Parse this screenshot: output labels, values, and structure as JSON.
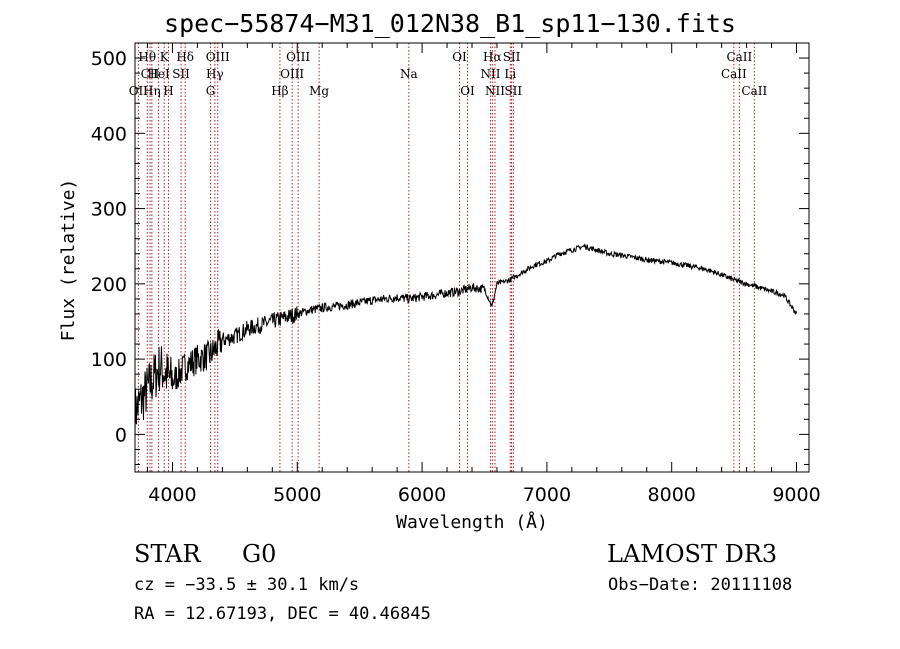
{
  "chart_data": {
    "type": "line",
    "title": "spec−55874−M31_012N38_B1_sp11−130.fits",
    "xlabel": "Wavelength (Å)",
    "ylabel": "Flux (relative)",
    "xlim": [
      3700,
      9100
    ],
    "ylim": [
      -50,
      520
    ],
    "x_ticks": [
      4000,
      5000,
      6000,
      7000,
      8000,
      9000
    ],
    "y_ticks": [
      0,
      100,
      200,
      300,
      400,
      500
    ],
    "series": [
      {
        "name": "spectrum",
        "x": [
          3700,
          3800,
          3900,
          4000,
          4100,
          4200,
          4300,
          4400,
          4500,
          4600,
          4700,
          4800,
          4900,
          5000,
          5100,
          5200,
          5300,
          5400,
          5500,
          5600,
          5700,
          5800,
          5900,
          6000,
          6100,
          6200,
          6300,
          6400,
          6500,
          6560,
          6600,
          6700,
          6800,
          6900,
          7000,
          7100,
          7200,
          7300,
          7400,
          7500,
          7600,
          7700,
          7800,
          7900,
          8000,
          8100,
          8200,
          8300,
          8400,
          8500,
          8600,
          8700,
          8800,
          8900,
          9000
        ],
        "y": [
          30,
          60,
          90,
          70,
          90,
          100,
          105,
          125,
          130,
          140,
          145,
          150,
          155,
          160,
          165,
          168,
          170,
          172,
          175,
          178,
          180,
          182,
          180,
          183,
          185,
          188,
          190,
          195,
          193,
          170,
          200,
          205,
          215,
          225,
          230,
          240,
          245,
          250,
          245,
          240,
          238,
          235,
          232,
          230,
          228,
          225,
          222,
          218,
          212,
          205,
          200,
          195,
          190,
          185,
          160
        ]
      }
    ],
    "line_markers": [
      {
        "label": "Hθ",
        "x": 3798,
        "row": 0
      },
      {
        "label": "CII",
        "x": 3820,
        "row": 1
      },
      {
        "label": "OII",
        "x": 3727,
        "row": 2
      },
      {
        "label": "Hη",
        "x": 3835,
        "row": 2
      },
      {
        "label": "K",
        "x": 3934,
        "row": 0
      },
      {
        "label": "HeI",
        "x": 3889,
        "row": 1
      },
      {
        "label": "SII",
        "x": 4069,
        "row": 1
      },
      {
        "label": "H",
        "x": 3968,
        "row": 2
      },
      {
        "label": "Hδ",
        "x": 4102,
        "row": 0
      },
      {
        "label": "OIII",
        "x": 4363,
        "row": 0
      },
      {
        "label": "Hγ",
        "x": 4340,
        "row": 1
      },
      {
        "label": "G",
        "x": 4305,
        "row": 2
      },
      {
        "label": "Hβ",
        "x": 4861,
        "row": 2
      },
      {
        "label": "OIII",
        "x": 5007,
        "row": 0
      },
      {
        "label": "OIII",
        "x": 4959,
        "row": 1
      },
      {
        "label": "Mg",
        "x": 5175,
        "row": 2
      },
      {
        "label": "Na",
        "x": 5894,
        "row": 1
      },
      {
        "label": "OI",
        "x": 6300,
        "row": 0
      },
      {
        "label": "OI",
        "x": 6364,
        "row": 2
      },
      {
        "label": "Hα",
        "x": 6563,
        "row": 0
      },
      {
        "label": "NII",
        "x": 6548,
        "row": 1
      },
      {
        "label": "NII",
        "x": 6584,
        "row": 2
      },
      {
        "label": "SII",
        "x": 6717,
        "row": 0
      },
      {
        "label": "Li",
        "x": 6707,
        "row": 1
      },
      {
        "label": "SII",
        "x": 6731,
        "row": 2
      },
      {
        "label": "CaII",
        "x": 8542,
        "row": 0
      },
      {
        "label": "CaII",
        "x": 8498,
        "row": 1
      },
      {
        "label": "CaII",
        "x": 8662,
        "row": 2
      }
    ]
  },
  "info": {
    "class": "STAR",
    "subclass": "G0",
    "survey": "LAMOST DR3",
    "cz": "cz = −33.5 ± 30.1 km/s",
    "obs_date": "Obs−Date: 20111108",
    "coords": "RA =  12.67193, DEC =  40.46845"
  }
}
